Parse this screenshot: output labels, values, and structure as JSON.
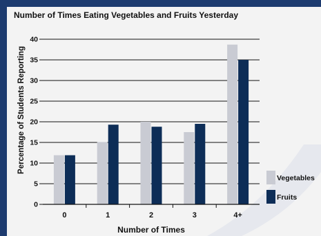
{
  "colors": {
    "frame": "#1d3b6f",
    "panel": "#f3f3f3",
    "vegetables": "#c9cbd3",
    "fruits": "#0d2d57",
    "axis": "#111111"
  },
  "chart_data": {
    "type": "bar",
    "title": "Number of Times Eating Vegetables and Fruits Yesterday",
    "xlabel": "Number of Times",
    "ylabel": "Percentage of Students Reporting",
    "categories": [
      "0",
      "1",
      "2",
      "3",
      "4+"
    ],
    "series": [
      {
        "name": "Vegetables",
        "values": [
          11.9,
          15.1,
          20.0,
          17.5,
          38.7
        ]
      },
      {
        "name": "Fruits",
        "values": [
          11.9,
          19.3,
          18.8,
          19.5,
          35.0
        ]
      }
    ],
    "ylim": [
      0,
      40
    ],
    "yticks": [
      "0",
      "5",
      "10",
      "15",
      "20",
      "25",
      "30",
      "35",
      "40"
    ],
    "grid": true,
    "legend": "bottom-right"
  }
}
